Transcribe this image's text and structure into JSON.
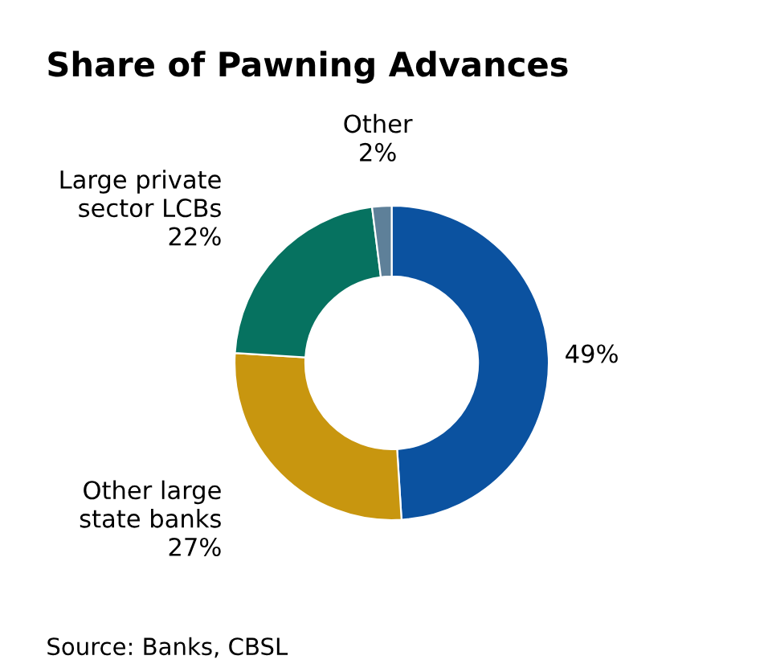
{
  "chart_data": {
    "type": "donut",
    "title": "Share of Pawning Advances",
    "categories": [
      null,
      "Other large\nstate banks",
      "Large private\nsector LCBs",
      "Other"
    ],
    "values": [
      49,
      27,
      22,
      2
    ],
    "colors": [
      "#0b52a0",
      "#c8960f",
      "#067260",
      "#5e8099"
    ],
    "value_labels": [
      "49%",
      "27%",
      "22%",
      "2%"
    ],
    "annotations": [
      "Source: Banks, CBSL"
    ]
  }
}
